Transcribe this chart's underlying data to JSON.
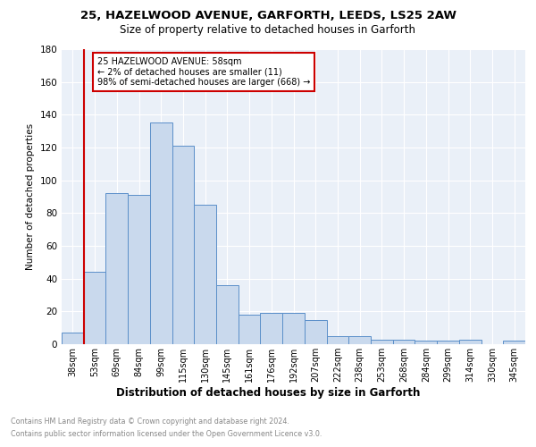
{
  "title1": "25, HAZELWOOD AVENUE, GARFORTH, LEEDS, LS25 2AW",
  "title2": "Size of property relative to detached houses in Garforth",
  "xlabel": "Distribution of detached houses by size in Garforth",
  "ylabel": "Number of detached properties",
  "categories": [
    "38sqm",
    "53sqm",
    "69sqm",
    "84sqm",
    "99sqm",
    "115sqm",
    "130sqm",
    "145sqm",
    "161sqm",
    "176sqm",
    "192sqm",
    "207sqm",
    "222sqm",
    "238sqm",
    "253sqm",
    "268sqm",
    "284sqm",
    "299sqm",
    "314sqm",
    "330sqm",
    "345sqm"
  ],
  "values": [
    7,
    44,
    92,
    91,
    135,
    121,
    85,
    36,
    18,
    19,
    19,
    15,
    5,
    5,
    3,
    3,
    2,
    2,
    3,
    0,
    2
  ],
  "bar_color": "#c9d9ed",
  "bar_edge_color": "#5b8fc9",
  "red_line_index": 1,
  "annotation_line1": "25 HAZELWOOD AVENUE: 58sqm",
  "annotation_line2": "← 2% of detached houses are smaller (11)",
  "annotation_line3": "98% of semi-detached houses are larger (668) →",
  "annotation_box_color": "#ffffff",
  "annotation_box_edge_color": "#cc0000",
  "red_line_color": "#cc0000",
  "ylim": [
    0,
    180
  ],
  "yticks": [
    0,
    20,
    40,
    60,
    80,
    100,
    120,
    140,
    160,
    180
  ],
  "footer_line1": "Contains HM Land Registry data © Crown copyright and database right 2024.",
  "footer_line2": "Contains public sector information licensed under the Open Government Licence v3.0.",
  "bg_color": "#eaf0f8",
  "fig_bg_color": "#ffffff"
}
